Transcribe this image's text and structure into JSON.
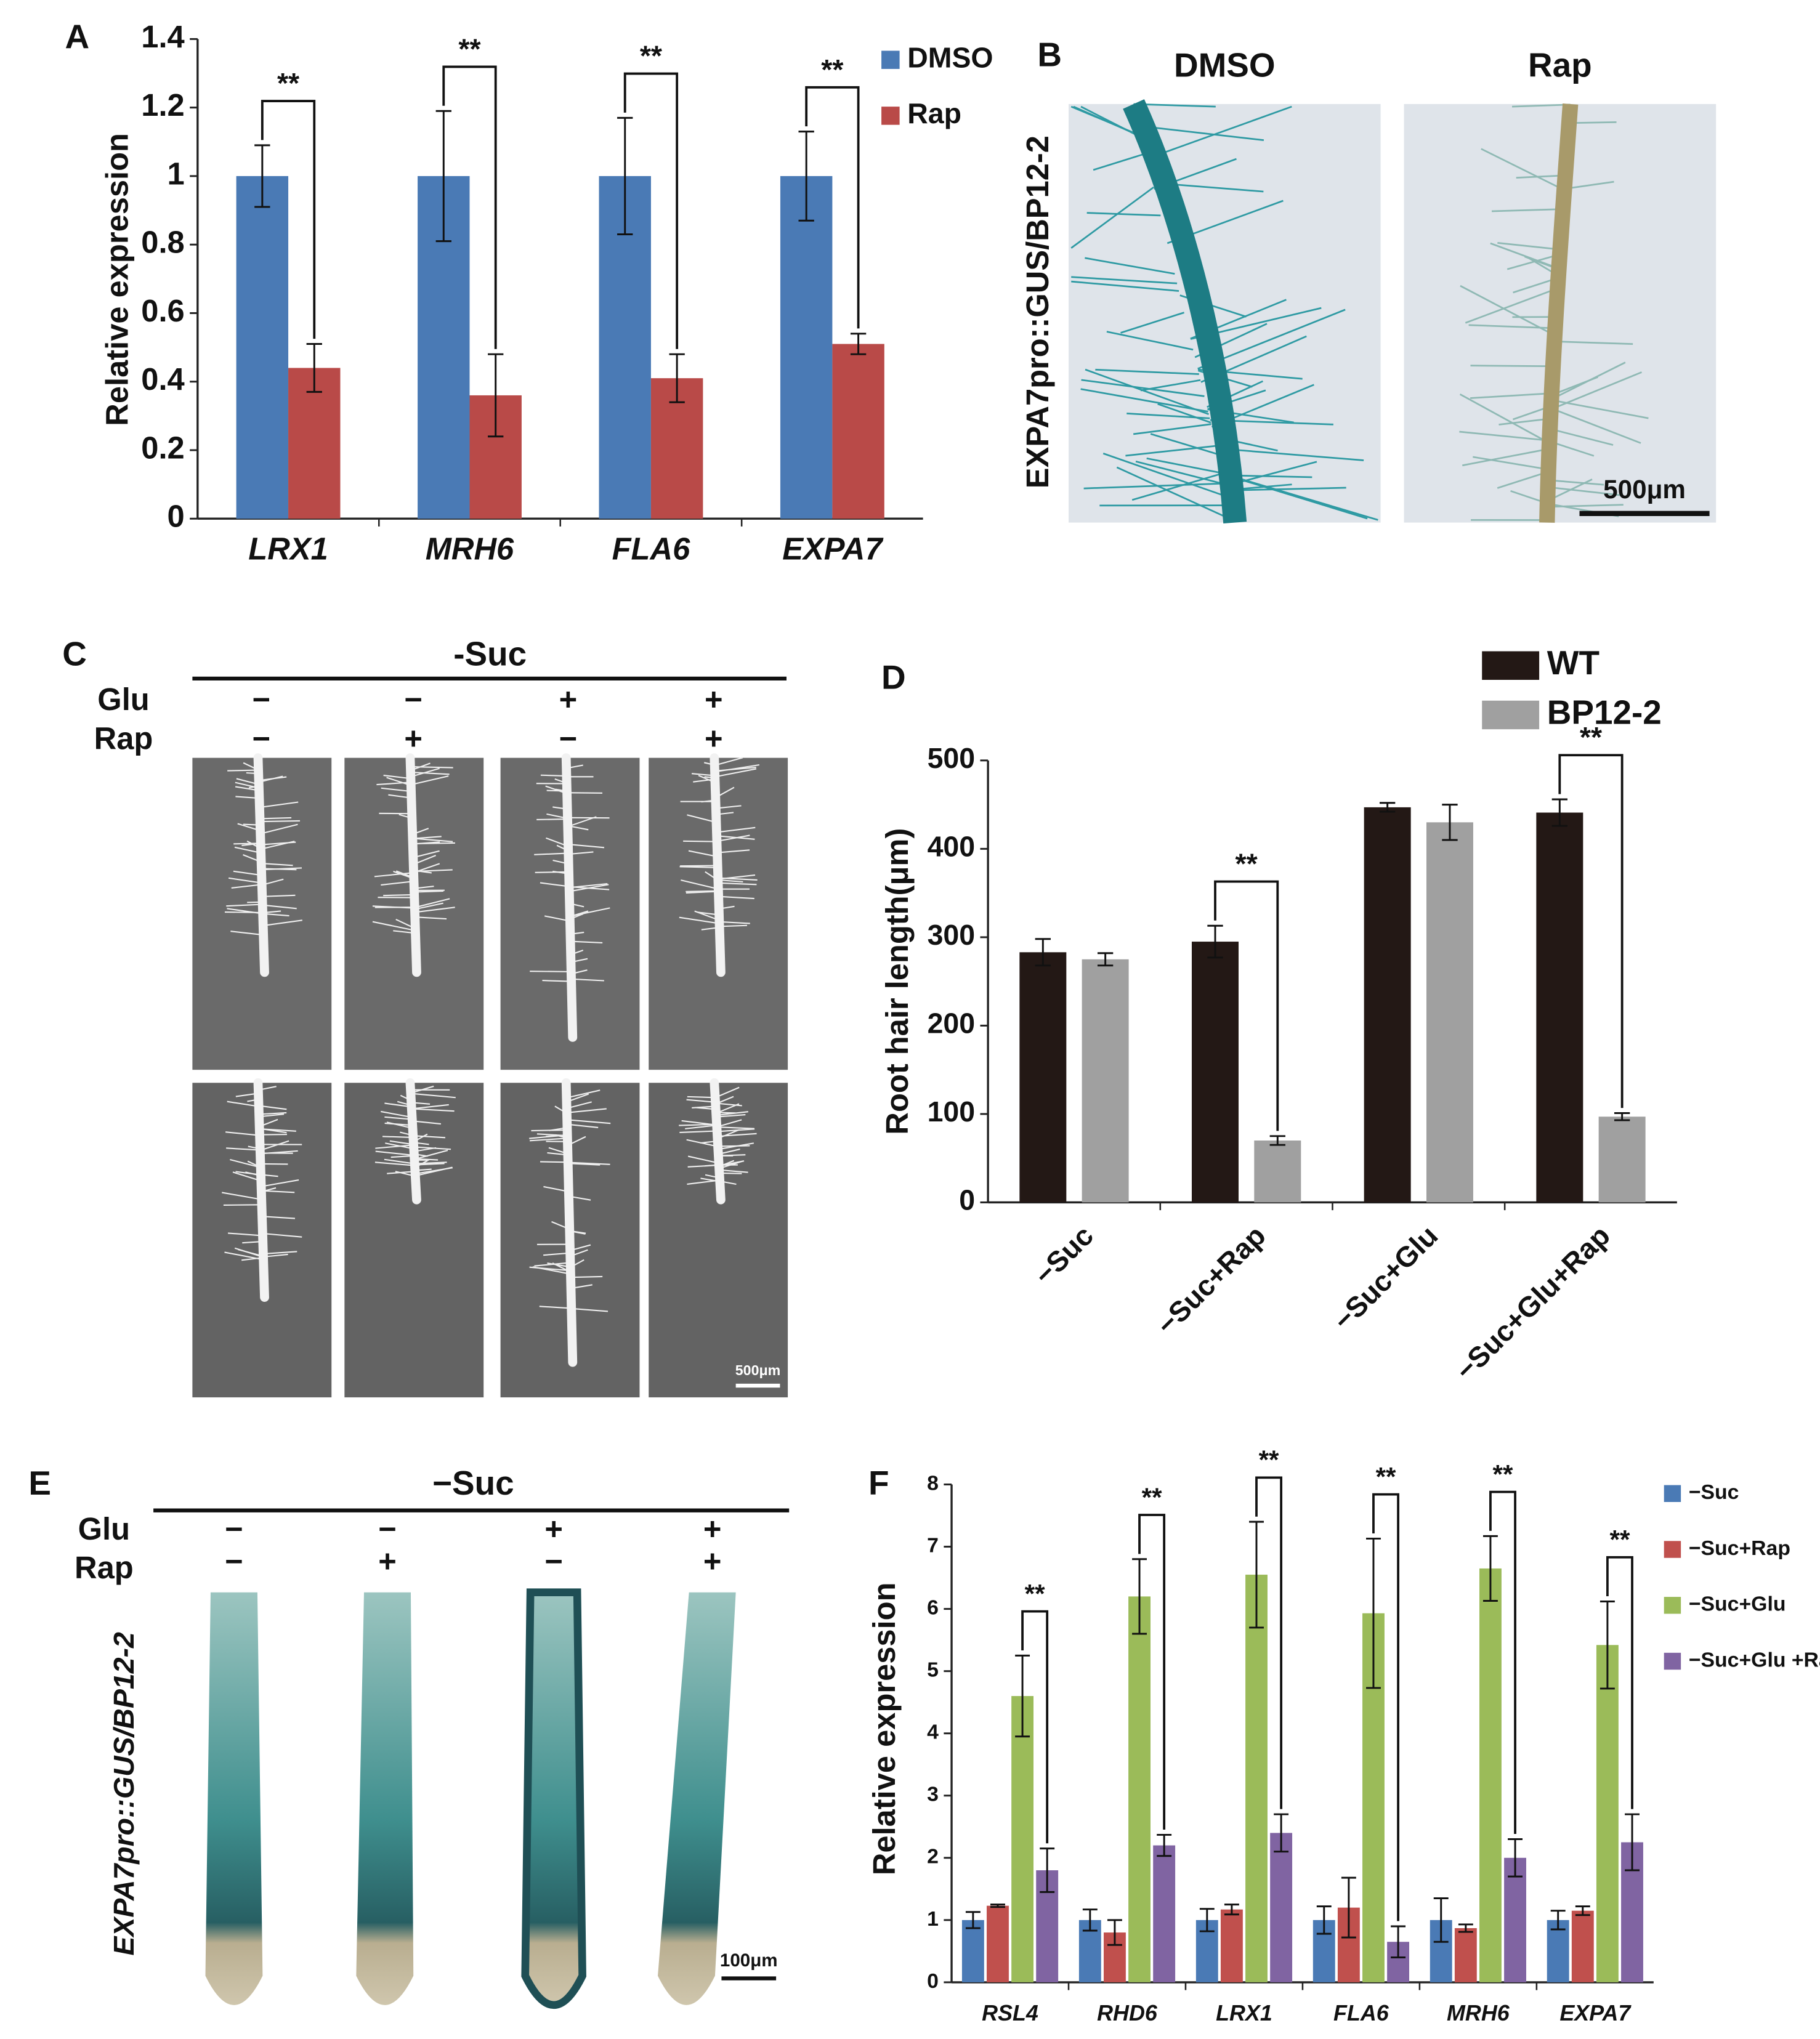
{
  "panel_labels": [
    "A",
    "B",
    "C",
    "D",
    "E",
    "F"
  ],
  "panel_b": {
    "columns": [
      "DMSO",
      "Rap"
    ],
    "row_label": "EXPA7pro::GUS/BP12-2",
    "scale_bar": "500μm"
  },
  "panel_c": {
    "header": "-Suc",
    "rows": [
      {
        "label": "Glu",
        "signs": [
          "−",
          "−",
          "+",
          "+"
        ]
      },
      {
        "label": "Rap",
        "signs": [
          "−",
          "+",
          "−",
          "+"
        ]
      }
    ],
    "scale_bar": "500μm"
  },
  "panel_e": {
    "header": "−Suc",
    "rows": [
      {
        "label": "Glu",
        "signs": [
          "−",
          "−",
          "+",
          "+"
        ]
      },
      {
        "label": "Rap",
        "signs": [
          "−",
          "+",
          "−",
          "+"
        ]
      }
    ],
    "row_label": "EXPA7pro::GUS/BP12-2",
    "scale_bar": "100μm"
  },
  "chart_data": [
    {
      "type": "bar",
      "y_label": "Relative expression",
      "categories": [
        "LRX1",
        "MRH6",
        "FLA6",
        "EXPA7"
      ],
      "series": [
        {
          "name": "DMSO",
          "color": "#4a7ab5",
          "values": [
            1,
            1,
            1,
            1
          ],
          "errors": [
            0.09,
            0.19,
            0.17,
            0.13
          ]
        },
        {
          "name": "Rap",
          "color": "#b94a48",
          "values": [
            0.44,
            0.36,
            0.41,
            0.51
          ],
          "errors": [
            0.07,
            0.12,
            0.07,
            0.03
          ]
        }
      ],
      "significance": [
        "**",
        "**",
        "**",
        "**"
      ],
      "ylim": [
        0,
        1.4
      ],
      "yticks": [
        0,
        0.2,
        0.4,
        0.6,
        0.8,
        1,
        1.2,
        1.4
      ],
      "legend": "top-right"
    },
    {
      "type": "bar",
      "y_label": "Root hair length(μm)",
      "categories": [
        "−Suc",
        "−Suc+Rap",
        "−Suc+Glu",
        "−Suc+Glu+Rap"
      ],
      "series": [
        {
          "name": "WT",
          "color": "#231815",
          "values": [
            283,
            295,
            447,
            441
          ],
          "errors": [
            15,
            18,
            5,
            15
          ]
        },
        {
          "name": "BP12-2",
          "color": "#a0a0a0",
          "values": [
            275,
            70,
            430,
            97
          ],
          "errors": [
            7,
            5,
            20,
            4
          ]
        }
      ],
      "significance": [
        null,
        "**",
        null,
        "**"
      ],
      "ylim": [
        0,
        500
      ],
      "yticks": [
        0,
        100,
        200,
        300,
        400,
        500
      ],
      "legend": "top"
    },
    {
      "type": "bar",
      "y_label": "Relative expression",
      "categories": [
        "RSL4",
        "RHD6",
        "LRX1",
        "FLA6",
        "MRH6",
        "EXPA7"
      ],
      "series": [
        {
          "name": "−Suc",
          "color": "#4a7ab5",
          "values": [
            1,
            1,
            1,
            1,
            1,
            1
          ],
          "errors": [
            0.13,
            0.17,
            0.18,
            0.22,
            0.35,
            0.15
          ]
        },
        {
          "name": "−Suc+Rap",
          "color": "#c0504d",
          "values": [
            1.23,
            0.8,
            1.17,
            1.2,
            0.87,
            1.15
          ],
          "errors": [
            0.02,
            0.2,
            0.08,
            0.48,
            0.06,
            0.07
          ]
        },
        {
          "name": "−Suc+Glu",
          "color": "#9bbb59",
          "values": [
            4.6,
            6.2,
            6.55,
            5.93,
            6.65,
            5.42
          ],
          "errors": [
            0.65,
            0.6,
            0.85,
            1.2,
            0.52,
            0.7
          ]
        },
        {
          "name": "−Suc+Glu +Rap",
          "color": "#8064a2",
          "values": [
            1.8,
            2.2,
            2.4,
            0.65,
            2.0,
            2.25
          ],
          "errors": [
            0.35,
            0.17,
            0.3,
            0.25,
            0.3,
            0.45
          ]
        }
      ],
      "significance": [
        "**",
        "**",
        "**",
        "**",
        "**",
        "**"
      ],
      "ylim": [
        0,
        8
      ],
      "yticks": [
        0,
        1,
        2,
        3,
        4,
        5,
        6,
        7,
        8
      ],
      "legend": "right"
    }
  ]
}
